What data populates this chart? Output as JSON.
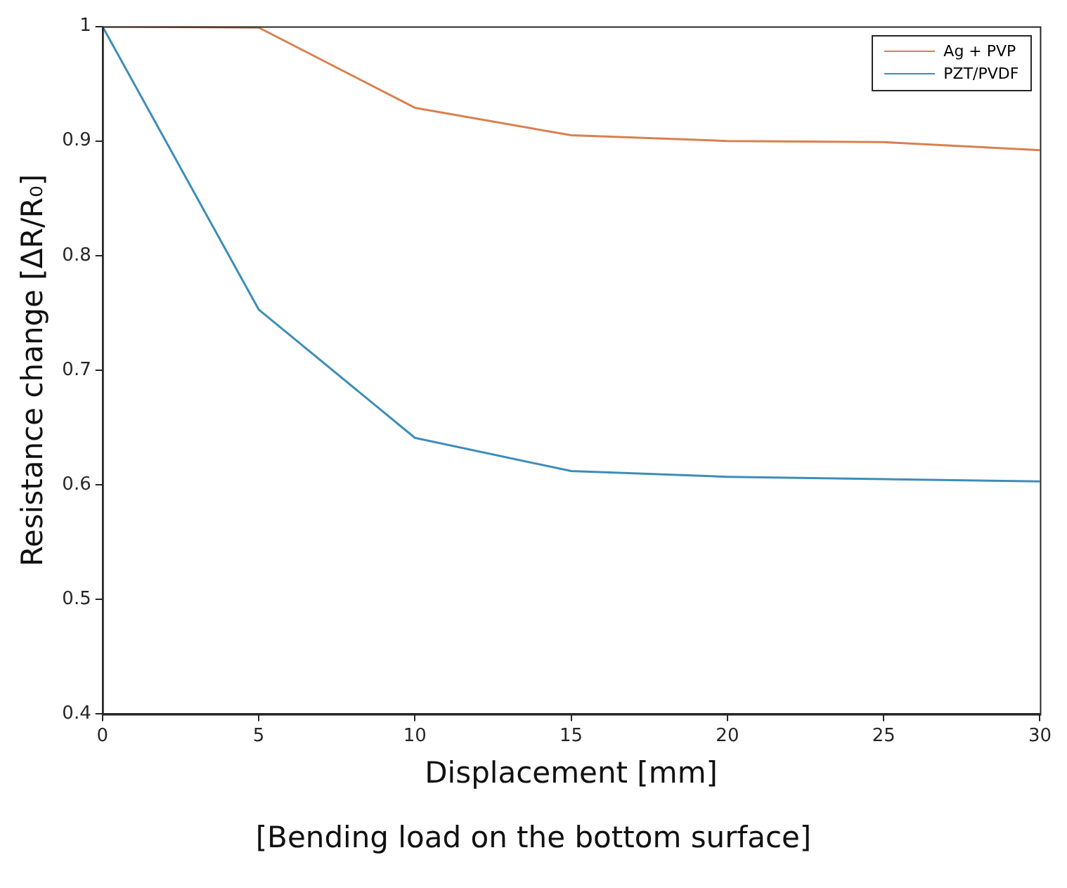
{
  "chart_data": {
    "type": "line",
    "xlabel": "Displacement [mm]",
    "ylabel": "Resistance change [ΔR/R₀]",
    "annotations": [
      "[Bending load on the bottom surface]"
    ],
    "x": [
      0,
      5,
      10,
      15,
      20,
      25,
      30
    ],
    "series": [
      {
        "name": "Ag + PVP",
        "color": "#d9804f",
        "values": [
          1.0,
          0.999,
          0.929,
          0.905,
          0.9,
          0.899,
          0.892
        ]
      },
      {
        "name": "PZT/PVDF",
        "color": "#3d8db8",
        "values": [
          1.0,
          0.753,
          0.641,
          0.612,
          0.607,
          0.605,
          0.603
        ]
      }
    ],
    "xlim": [
      0,
      30
    ],
    "xticks": [
      0,
      5,
      10,
      15,
      20,
      25,
      30
    ],
    "ylim": [
      0.4,
      1
    ],
    "yticks": [
      0.4,
      0.5,
      0.6,
      0.7,
      0.8,
      0.9,
      1
    ],
    "grid": false,
    "legend": "top right",
    "marker": "none",
    "line_style": "solid"
  }
}
